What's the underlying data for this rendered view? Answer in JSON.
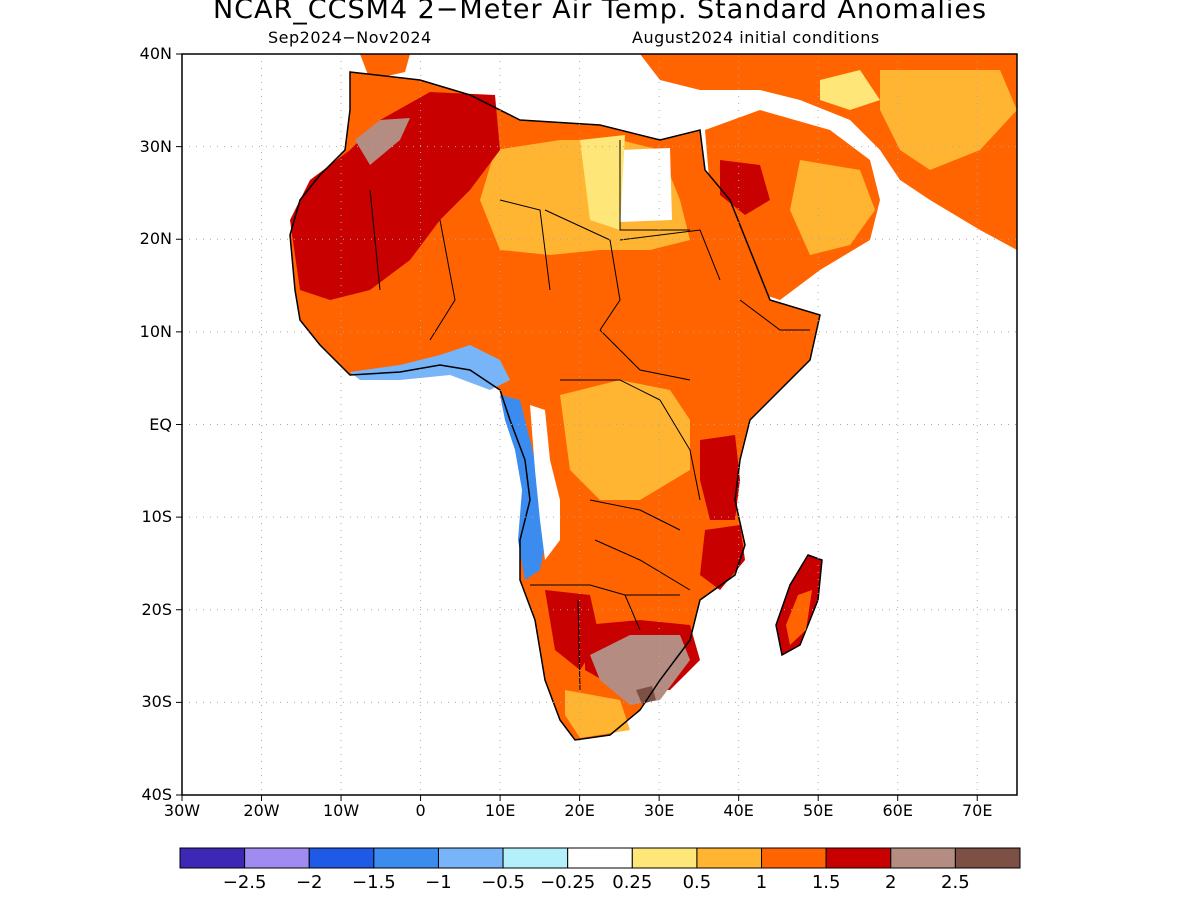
{
  "header": {
    "title": "NCAR_CCSM4 2−Meter Air Temp. Standard Anomalies",
    "period": "Sep2024−Nov2024",
    "init": "August2024 initial conditions"
  },
  "chart_data": {
    "type": "heatmap",
    "title": "NCAR_CCSM4 2−Meter Air Temp. Standard Anomalies",
    "region": "Africa",
    "xlim": [
      -30,
      75
    ],
    "ylim": [
      -40,
      40
    ],
    "x_ticks": [
      "30W",
      "20W",
      "10W",
      "0",
      "10E",
      "20E",
      "30E",
      "40E",
      "50E",
      "60E",
      "70E"
    ],
    "y_ticks": [
      "40N",
      "30N",
      "20N",
      "10N",
      "EQ",
      "10S",
      "20S",
      "30S",
      "40S"
    ],
    "grid": "dotted",
    "colorbar": {
      "placement": "bottom",
      "labels": [
        "−2.5",
        "−2",
        "−1.5",
        "−1",
        "−0.5",
        "−0.25",
        "0.25",
        "0.5",
        "1",
        "1.5",
        "2",
        "2.5"
      ],
      "colors": [
        "#3c28b4",
        "#a08cf0",
        "#1e5ae6",
        "#3c8cf0",
        "#78b4f8",
        "#b4f0fa",
        "#ffffff",
        "#ffe678",
        "#ffb432",
        "#ff6400",
        "#c80000",
        "#b48c82",
        "#7d5046"
      ]
    },
    "regions_approx": [
      {
        "area": "West Sahara / Mauritania / Mali",
        "anomaly_range": "1.5 to 2.5"
      },
      {
        "area": "Libya / Egypt / Central Sahara",
        "anomaly_range": "0.5 to 1.5"
      },
      {
        "area": "Sahel / Central Africa",
        "anomaly_range": "1 to 1.5"
      },
      {
        "area": "Gulf of Guinea coast",
        "anomaly_range": "-1 to 0.25"
      },
      {
        "area": "Angola / Gabon coast",
        "anomaly_range": "-1 to 0.25"
      },
      {
        "area": "East Africa / Kenya / Tanzania",
        "anomaly_range": "1.5 to 2"
      },
      {
        "area": "Botswana / South Africa interior",
        "anomaly_range": "2 to 2.5"
      },
      {
        "area": "Madagascar",
        "anomaly_range": "1.5 to 2"
      },
      {
        "area": "Arabian Peninsula",
        "anomaly_range": "0.5 to 2"
      }
    ]
  }
}
